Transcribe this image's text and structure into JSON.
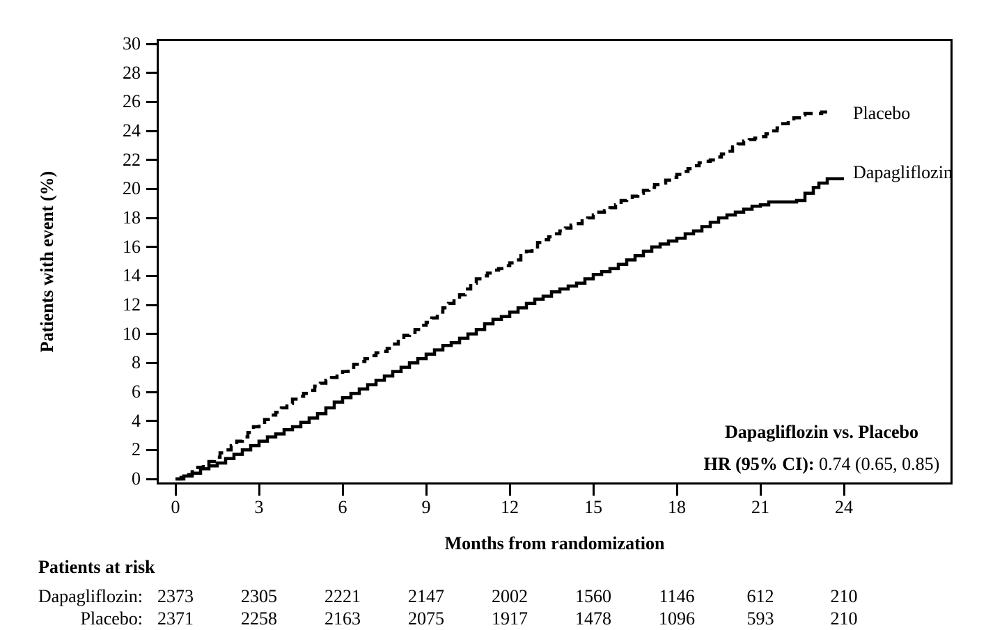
{
  "chart_data": {
    "type": "line",
    "subtype": "kaplan-meier-step",
    "title": "",
    "xlabel": "Months from randomization",
    "ylabel": "Patients with event (%)",
    "xlim": [
      0,
      24
    ],
    "ylim": [
      0,
      30
    ],
    "x_ticks": [
      0,
      3,
      6,
      9,
      12,
      15,
      18,
      21,
      24
    ],
    "y_ticks": [
      0,
      2,
      4,
      6,
      8,
      10,
      12,
      14,
      16,
      18,
      20,
      22,
      24,
      26,
      28,
      30
    ],
    "grid": "off",
    "legend_position": "curve-end-labels-inside-right",
    "line_color": "#000000",
    "background_color": "#ffffff",
    "series": [
      {
        "name": "Placebo",
        "line_style": "dashed",
        "points": [
          [
            0,
            0
          ],
          [
            0.2,
            0.1
          ],
          [
            0.4,
            0.3
          ],
          [
            0.6,
            0.5
          ],
          [
            0.8,
            0.8
          ],
          [
            1,
            1.0
          ],
          [
            1.2,
            1.2
          ],
          [
            1.4,
            1.5
          ],
          [
            1.6,
            1.8
          ],
          [
            1.8,
            2.0
          ],
          [
            2,
            2.3
          ],
          [
            2.2,
            2.6
          ],
          [
            2.4,
            2.9
          ],
          [
            2.6,
            3.2
          ],
          [
            2.8,
            3.6
          ],
          [
            3,
            3.9
          ],
          [
            3.2,
            4.1
          ],
          [
            3.4,
            4.4
          ],
          [
            3.6,
            4.6
          ],
          [
            3.8,
            4.9
          ],
          [
            4,
            5.2
          ],
          [
            4.2,
            5.5
          ],
          [
            4.4,
            5.7
          ],
          [
            4.6,
            5.9
          ],
          [
            4.8,
            6.1
          ],
          [
            5,
            6.4
          ],
          [
            5.2,
            6.6
          ],
          [
            5.4,
            6.8
          ],
          [
            5.6,
            7.0
          ],
          [
            5.8,
            7.2
          ],
          [
            6,
            7.4
          ],
          [
            6.2,
            7.7
          ],
          [
            6.4,
            7.9
          ],
          [
            6.6,
            8.1
          ],
          [
            6.8,
            8.3
          ],
          [
            7,
            8.5
          ],
          [
            7.2,
            8.7
          ],
          [
            7.4,
            8.8
          ],
          [
            7.6,
            9.0
          ],
          [
            7.8,
            9.3
          ],
          [
            8,
            9.6
          ],
          [
            8.2,
            9.9
          ],
          [
            8.4,
            10.1
          ],
          [
            8.6,
            10.3
          ],
          [
            8.8,
            10.6
          ],
          [
            9,
            10.8
          ],
          [
            9.2,
            11.1
          ],
          [
            9.4,
            11.5
          ],
          [
            9.6,
            11.8
          ],
          [
            9.8,
            12.1
          ],
          [
            10,
            12.4
          ],
          [
            10.2,
            12.7
          ],
          [
            10.4,
            13.1
          ],
          [
            10.6,
            13.5
          ],
          [
            10.8,
            13.8
          ],
          [
            11,
            14.0
          ],
          [
            11.2,
            14.2
          ],
          [
            11.4,
            14.4
          ],
          [
            11.6,
            14.5
          ],
          [
            11.8,
            14.7
          ],
          [
            12,
            14.9
          ],
          [
            12.2,
            15.1
          ],
          [
            12.4,
            15.4
          ],
          [
            12.6,
            15.7
          ],
          [
            12.8,
            16.0
          ],
          [
            13,
            16.3
          ],
          [
            13.2,
            16.5
          ],
          [
            13.4,
            16.7
          ],
          [
            13.6,
            16.9
          ],
          [
            13.8,
            17.1
          ],
          [
            14,
            17.3
          ],
          [
            14.2,
            17.5
          ],
          [
            14.4,
            17.6
          ],
          [
            14.6,
            17.8
          ],
          [
            14.8,
            18.0
          ],
          [
            15,
            18.2
          ],
          [
            15.2,
            18.4
          ],
          [
            15.4,
            18.5
          ],
          [
            15.6,
            18.7
          ],
          [
            15.8,
            18.9
          ],
          [
            16,
            19.2
          ],
          [
            16.2,
            19.4
          ],
          [
            16.4,
            19.5
          ],
          [
            16.6,
            19.7
          ],
          [
            16.8,
            19.9
          ],
          [
            17,
            20.1
          ],
          [
            17.2,
            20.3
          ],
          [
            17.4,
            20.4
          ],
          [
            17.6,
            20.6
          ],
          [
            17.8,
            20.8
          ],
          [
            18,
            21.0
          ],
          [
            18.2,
            21.2
          ],
          [
            18.4,
            21.4
          ],
          [
            18.6,
            21.6
          ],
          [
            18.8,
            21.8
          ],
          [
            19,
            21.9
          ],
          [
            19.2,
            22.0
          ],
          [
            19.4,
            22.2
          ],
          [
            19.6,
            22.4
          ],
          [
            19.8,
            22.6
          ],
          [
            20,
            22.9
          ],
          [
            20.2,
            23.1
          ],
          [
            20.4,
            23.3
          ],
          [
            20.6,
            23.4
          ],
          [
            20.8,
            23.5
          ],
          [
            21,
            23.6
          ],
          [
            21.2,
            23.8
          ],
          [
            21.4,
            24.0
          ],
          [
            21.6,
            24.2
          ],
          [
            21.8,
            24.5
          ],
          [
            22,
            24.7
          ],
          [
            22.2,
            24.9
          ],
          [
            22.4,
            25.1
          ],
          [
            22.6,
            25.2
          ],
          [
            23.2,
            25.3
          ],
          [
            23.5,
            25.3
          ]
        ]
      },
      {
        "name": "Dapagliflozin",
        "line_style": "solid",
        "points": [
          [
            0,
            0
          ],
          [
            0.3,
            0.2
          ],
          [
            0.6,
            0.4
          ],
          [
            0.9,
            0.7
          ],
          [
            1.2,
            0.9
          ],
          [
            1.5,
            1.1
          ],
          [
            1.8,
            1.4
          ],
          [
            2.1,
            1.7
          ],
          [
            2.4,
            2.0
          ],
          [
            2.7,
            2.3
          ],
          [
            3,
            2.6
          ],
          [
            3.3,
            2.9
          ],
          [
            3.6,
            3.1
          ],
          [
            3.9,
            3.4
          ],
          [
            4.2,
            3.6
          ],
          [
            4.5,
            3.9
          ],
          [
            4.8,
            4.2
          ],
          [
            5.1,
            4.5
          ],
          [
            5.4,
            4.9
          ],
          [
            5.7,
            5.3
          ],
          [
            6,
            5.6
          ],
          [
            6.3,
            5.9
          ],
          [
            6.6,
            6.2
          ],
          [
            6.9,
            6.5
          ],
          [
            7.2,
            6.8
          ],
          [
            7.5,
            7.1
          ],
          [
            7.8,
            7.4
          ],
          [
            8.1,
            7.7
          ],
          [
            8.4,
            8.0
          ],
          [
            8.7,
            8.3
          ],
          [
            9,
            8.6
          ],
          [
            9.3,
            8.9
          ],
          [
            9.6,
            9.2
          ],
          [
            9.9,
            9.4
          ],
          [
            10.2,
            9.7
          ],
          [
            10.5,
            10.0
          ],
          [
            10.8,
            10.3
          ],
          [
            11.1,
            10.7
          ],
          [
            11.4,
            11.0
          ],
          [
            11.7,
            11.2
          ],
          [
            12,
            11.5
          ],
          [
            12.3,
            11.8
          ],
          [
            12.6,
            12.1
          ],
          [
            12.9,
            12.4
          ],
          [
            13.2,
            12.6
          ],
          [
            13.5,
            12.9
          ],
          [
            13.8,
            13.1
          ],
          [
            14.1,
            13.3
          ],
          [
            14.4,
            13.5
          ],
          [
            14.7,
            13.8
          ],
          [
            15,
            14.1
          ],
          [
            15.3,
            14.3
          ],
          [
            15.6,
            14.5
          ],
          [
            15.9,
            14.8
          ],
          [
            16.2,
            15.1
          ],
          [
            16.5,
            15.4
          ],
          [
            16.8,
            15.7
          ],
          [
            17.1,
            16.0
          ],
          [
            17.4,
            16.2
          ],
          [
            17.7,
            16.4
          ],
          [
            18,
            16.6
          ],
          [
            18.3,
            16.9
          ],
          [
            18.6,
            17.1
          ],
          [
            18.9,
            17.4
          ],
          [
            19.2,
            17.7
          ],
          [
            19.5,
            18.0
          ],
          [
            19.8,
            18.2
          ],
          [
            20.1,
            18.4
          ],
          [
            20.4,
            18.6
          ],
          [
            20.7,
            18.8
          ],
          [
            21,
            18.9
          ],
          [
            21.3,
            19.1
          ],
          [
            22.3,
            19.2
          ],
          [
            22.6,
            19.7
          ],
          [
            22.9,
            20.1
          ],
          [
            23.1,
            20.4
          ],
          [
            23.4,
            20.7
          ],
          [
            24,
            20.7
          ]
        ]
      }
    ],
    "annotation": {
      "title": "Dapagliflozin vs. Placebo",
      "hr_label": "HR (95% CI):",
      "hr_value": " 0.74 (0.65, 0.85)"
    },
    "risk_table": {
      "title": "Patients at risk",
      "months": [
        0,
        3,
        6,
        9,
        12,
        15,
        18,
        21,
        24
      ],
      "rows": [
        {
          "label": "Dapagliflozin:",
          "values": [
            2373,
            2305,
            2221,
            2147,
            2002,
            1560,
            1146,
            612,
            210
          ]
        },
        {
          "label": "Placebo:",
          "values": [
            2371,
            2258,
            2163,
            2075,
            1917,
            1478,
            1096,
            593,
            210
          ]
        }
      ]
    }
  }
}
